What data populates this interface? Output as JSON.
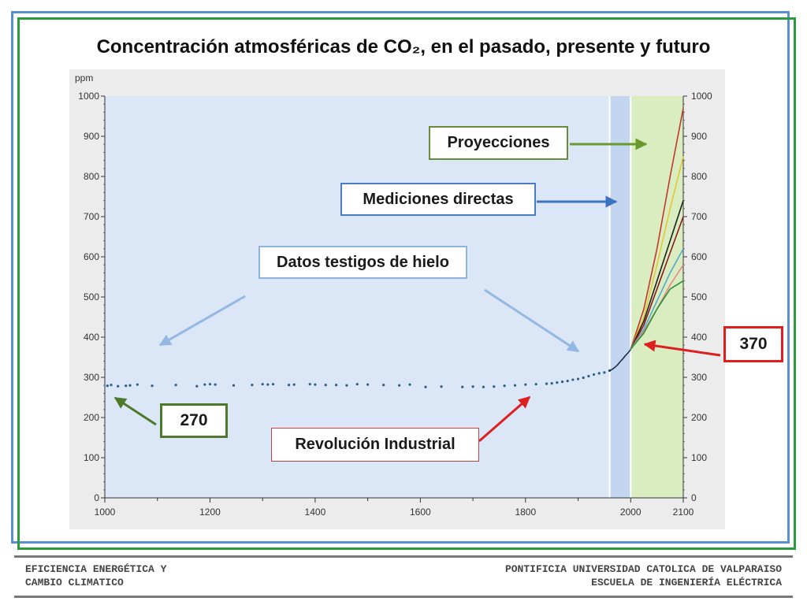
{
  "slide": {
    "title": "Concentración atmosféricas de CO₂, en el pasado, presente y futuro"
  },
  "chart_data": {
    "type": "scatter",
    "ylabel": "ppm",
    "xlim": [
      1000,
      2100
    ],
    "ylim": [
      0,
      1000
    ],
    "x_ticks": [
      1000,
      1200,
      1400,
      1600,
      1800,
      2000,
      2100
    ],
    "y_ticks": [
      0,
      100,
      200,
      300,
      400,
      500,
      600,
      700,
      800,
      900,
      1000
    ],
    "ice_core": {
      "x": [
        1005,
        1012,
        1025,
        1040,
        1048,
        1062,
        1090,
        1135,
        1175,
        1190,
        1200,
        1210,
        1245,
        1280,
        1300,
        1310,
        1320,
        1350,
        1360,
        1390,
        1400,
        1420,
        1440,
        1460,
        1480,
        1500,
        1530,
        1560,
        1580,
        1610,
        1640,
        1680,
        1700,
        1720,
        1740,
        1760,
        1780,
        1800,
        1820,
        1840,
        1850,
        1860,
        1870,
        1880,
        1890,
        1900,
        1910,
        1920,
        1930,
        1940,
        1950,
        1960
      ],
      "y": [
        279,
        281,
        278,
        279,
        280,
        282,
        279,
        281,
        278,
        282,
        283,
        282,
        280,
        281,
        283,
        282,
        283,
        281,
        282,
        283,
        282,
        281,
        281,
        280,
        283,
        282,
        281,
        280,
        282,
        276,
        277,
        276,
        277,
        276,
        277,
        279,
        280,
        282,
        283,
        284,
        285,
        287,
        289,
        291,
        294,
        296,
        299,
        303,
        307,
        310,
        312,
        317
      ]
    },
    "direct_measurements": {
      "x": [
        1958,
        1965,
        1970,
        1975,
        1980,
        1985,
        1990,
        1995,
        2000
      ],
      "y": [
        315,
        320,
        325,
        331,
        339,
        346,
        354,
        361,
        369
      ]
    },
    "projections": {
      "x": [
        2000,
        2025,
        2050,
        2075,
        2100
      ],
      "series": [
        {
          "color": "#c0392b",
          "values": [
            370,
            470,
            620,
            800,
            970
          ]
        },
        {
          "color": "#e4c63a",
          "values": [
            370,
            450,
            580,
            720,
            850
          ]
        },
        {
          "color": "#1f1f1f",
          "values": [
            370,
            440,
            540,
            640,
            740
          ]
        },
        {
          "color": "#8b1a1a",
          "values": [
            370,
            430,
            520,
            610,
            700
          ]
        },
        {
          "color": "#56a9cf",
          "values": [
            370,
            420,
            490,
            560,
            620
          ]
        },
        {
          "color": "#e88a8a",
          "values": [
            370,
            415,
            470,
            530,
            580
          ]
        },
        {
          "color": "#2f8f3a",
          "values": [
            370,
            410,
            470,
            520,
            540
          ]
        }
      ]
    },
    "annotations": {
      "proyecciones": "Proyecciones",
      "mediciones": "Mediciones directas",
      "datos_hielo": "Datos testigos de hielo",
      "value_370": "370",
      "value_270": "270",
      "revolucion": "Revolución Industrial"
    },
    "colors": {
      "past_band": "#dbe6f6",
      "measured_band": "#c3d6f0",
      "projection_band": "#d9edc1",
      "ice_core_points": "#2b5f8a"
    }
  },
  "footer": {
    "left_line1": "EFICIENCIA ENERGÉTICA Y",
    "left_line2": "CAMBIO CLIMATICO",
    "right_line1": "PONTIFICIA UNIVERSIDAD CATOLICA DE VALPARAISO",
    "right_line2": "ESCUELA DE INGENIERÍA ELÉCTRICA"
  }
}
